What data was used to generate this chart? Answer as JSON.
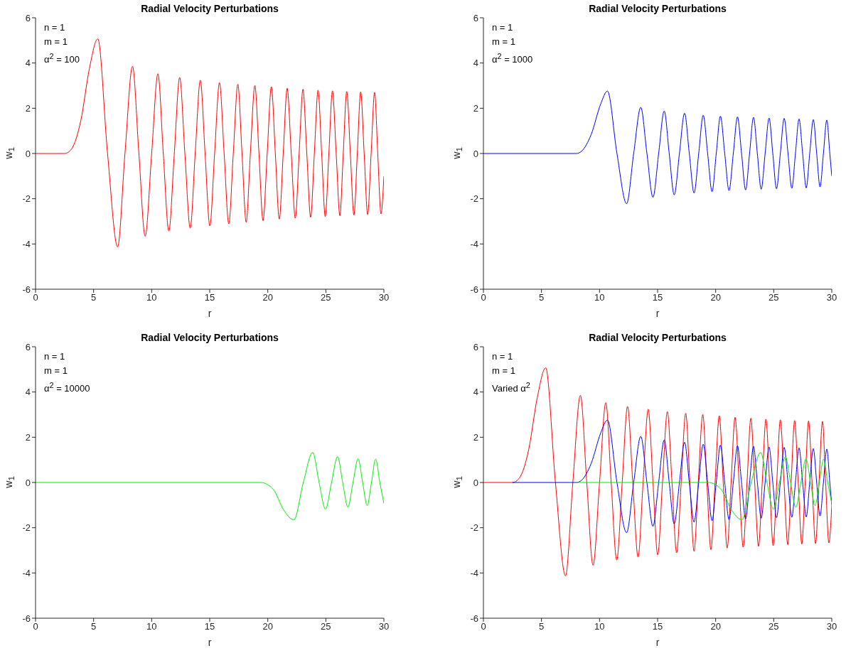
{
  "chart_data": [
    {
      "type": "line",
      "title": "Radial Velocity Perturbations",
      "xlabel": "r",
      "ylabel": "w$_{1}$",
      "annotations": [
        "n = 1",
        "m = 1",
        "α$^{2}$ = 100"
      ],
      "xlim": [
        0,
        30
      ],
      "xticks": [
        0,
        5,
        10,
        15,
        20,
        25,
        30
      ],
      "ylim": [
        -6,
        6
      ],
      "yticks": [
        -6,
        -4,
        -2,
        0,
        2,
        4,
        6
      ],
      "marker": "none",
      "line_style": "solid",
      "series": [
        {
          "color": "#ff0000",
          "x": [
            0,
            2.5,
            3.1,
            3.9,
            4.64,
            5.36,
            6.2,
            7.07,
            7.7,
            8.35,
            8.9,
            9.44,
            10.0,
            10.54,
            11.0,
            11.48,
            11.95,
            12.41,
            12.86,
            13.32,
            13.75,
            14.19,
            14.6,
            15.01,
            15.42,
            15.84,
            16.24,
            16.64,
            17.03,
            17.42,
            17.78,
            18.14,
            18.5,
            18.89,
            19.24,
            19.59,
            19.95,
            20.31,
            20.65,
            20.99,
            21.33,
            21.67,
            22.02,
            22.37,
            22.7,
            23.03,
            23.36,
            23.69,
            24.01,
            24.33,
            24.64,
            24.95,
            25.26,
            25.57,
            25.89,
            26.21,
            26.5,
            26.8,
            27.11,
            27.42,
            27.71,
            28.0,
            28.3,
            28.6,
            28.9,
            29.2,
            29.47,
            29.75,
            30
          ],
          "values": [
            0,
            0,
            0.2,
            1.46,
            3.76,
            5.07,
            0,
            -4.13,
            0,
            3.85,
            0,
            -3.66,
            0,
            3.53,
            0,
            -3.43,
            0,
            3.36,
            0,
            -3.3,
            0,
            3.24,
            0,
            -3.2,
            0,
            3.13,
            0,
            -3.11,
            0,
            3.06,
            0,
            -3.04,
            0,
            3.0,
            0,
            -2.97,
            0,
            2.95,
            0,
            -2.9,
            0,
            2.88,
            0,
            -2.86,
            0,
            2.84,
            0,
            -2.82,
            0,
            2.8,
            0,
            -2.79,
            0,
            2.77,
            0,
            -2.75,
            0,
            2.74,
            0,
            -2.72,
            0,
            2.72,
            0,
            -2.7,
            0,
            2.7,
            0,
            -2.67,
            -1.0
          ]
        }
      ]
    },
    {
      "type": "line",
      "title": "Radial Velocity Perturbations",
      "xlabel": "r",
      "ylabel": "w$_{1}$",
      "annotations": [
        "n = 1",
        "m = 1",
        "α$^{2}$ = 1000"
      ],
      "xlim": [
        0,
        30
      ],
      "xticks": [
        0,
        5,
        10,
        15,
        20,
        25,
        30
      ],
      "ylim": [
        -6,
        6
      ],
      "yticks": [
        -6,
        -4,
        -2,
        0,
        2,
        4,
        6
      ],
      "marker": "none",
      "line_style": "solid",
      "series": [
        {
          "color": "#0000ff",
          "x": [
            0,
            8,
            8.45,
            9.28,
            10.1,
            10.68,
            11.5,
            12.33,
            12.94,
            13.55,
            14.08,
            14.6,
            15.09,
            15.57,
            16.0,
            16.43,
            16.88,
            17.32,
            17.73,
            18.14,
            18.54,
            18.93,
            19.31,
            19.69,
            20.05,
            20.41,
            20.78,
            21.15,
            21.52,
            21.88,
            22.23,
            22.58,
            22.92,
            23.26,
            23.59,
            23.92,
            24.26,
            24.6,
            24.92,
            25.24,
            25.57,
            25.9,
            26.23,
            26.56,
            26.87,
            27.18,
            27.49,
            27.8,
            28.1,
            28.41,
            28.7,
            28.99,
            29.28,
            29.57,
            29.83,
            30
          ],
          "values": [
            0,
            0,
            0.1,
            0.84,
            2.19,
            2.76,
            0,
            -2.22,
            0,
            2.04,
            0,
            -1.94,
            0,
            1.88,
            0,
            -1.83,
            0,
            1.78,
            0,
            -1.75,
            0,
            1.69,
            0,
            -1.69,
            0,
            1.65,
            0,
            -1.64,
            0,
            1.62,
            0,
            -1.61,
            0,
            1.6,
            0,
            -1.58,
            0,
            1.57,
            0,
            -1.56,
            0,
            1.55,
            0,
            -1.54,
            0,
            1.53,
            0,
            -1.52,
            0,
            1.5,
            0,
            -1.48,
            0,
            1.48,
            0,
            -1.0
          ]
        }
      ]
    },
    {
      "type": "line",
      "title": "Radial Velocity Perturbations",
      "xlabel": "r",
      "ylabel": "w$_{1}$",
      "annotations": [
        "n = 1",
        "m = 1",
        "α$^{2}$ = 10000"
      ],
      "xlim": [
        0,
        30
      ],
      "xticks": [
        0,
        5,
        10,
        15,
        20,
        25,
        30
      ],
      "ylim": [
        -6,
        6
      ],
      "yticks": [
        -6,
        -4,
        -2,
        0,
        2,
        4,
        6
      ],
      "marker": "none",
      "line_style": "solid",
      "series": [
        {
          "color": "#00ee00",
          "x": [
            0,
            19.37,
            20.48,
            21.36,
            22.25,
            23.06,
            23.87,
            24.42,
            24.97,
            25.49,
            26.01,
            26.45,
            26.9,
            27.34,
            27.78,
            28.17,
            28.56,
            28.93,
            29.29,
            29.65,
            30
          ],
          "values": [
            0,
            0,
            -0.31,
            -1.21,
            -1.65,
            0,
            1.33,
            0,
            -1.18,
            0,
            1.14,
            0,
            -1.09,
            0,
            1.05,
            0,
            -1.02,
            0,
            1.03,
            0,
            -0.93
          ]
        }
      ]
    },
    {
      "type": "line",
      "title": "Radial Velocity Perturbations",
      "xlabel": "r",
      "ylabel": "w$_{1}$",
      "annotations": [
        "n = 1",
        "m = 1",
        "Varied α$^{2}$"
      ],
      "xlim": [
        0,
        30
      ],
      "xticks": [
        0,
        5,
        10,
        15,
        20,
        25,
        30
      ],
      "ylim": [
        -6,
        6
      ],
      "yticks": [
        -6,
        -4,
        -2,
        0,
        2,
        4,
        6
      ],
      "marker": "none",
      "line_style": "solid",
      "series": [
        {
          "color": "#00ee00",
          "x": [
            8,
            19.37,
            20.48,
            21.36,
            22.25,
            23.06,
            23.87,
            24.42,
            24.97,
            25.49,
            26.01,
            26.45,
            26.9,
            27.34,
            27.78,
            28.17,
            28.56,
            28.93,
            29.29,
            29.65,
            30
          ],
          "values": [
            0,
            0,
            -0.31,
            -1.21,
            -1.65,
            0,
            1.33,
            0,
            -1.18,
            0,
            1.14,
            0,
            -1.09,
            0,
            1.05,
            0,
            -1.02,
            0,
            1.03,
            0,
            -0.93
          ]
        },
        {
          "color": "#0000ff",
          "x": [
            2.5,
            8,
            8.45,
            9.28,
            10.1,
            10.68,
            11.5,
            12.33,
            12.94,
            13.55,
            14.08,
            14.6,
            15.09,
            15.57,
            16.0,
            16.43,
            16.88,
            17.32,
            17.73,
            18.14,
            18.54,
            18.93,
            19.31,
            19.69,
            20.05,
            20.41,
            20.78,
            21.15,
            21.52,
            21.88,
            22.23,
            22.58,
            22.92,
            23.26,
            23.59,
            23.92,
            24.26,
            24.6,
            24.92,
            25.24,
            25.57,
            25.9,
            26.23,
            26.56,
            26.87,
            27.18,
            27.49,
            27.8,
            28.1,
            28.41,
            28.7,
            28.99,
            29.28,
            29.57,
            29.83,
            30
          ],
          "values": [
            0,
            0,
            0.1,
            0.84,
            2.19,
            2.76,
            0,
            -2.22,
            0,
            2.04,
            0,
            -1.94,
            0,
            1.88,
            0,
            -1.83,
            0,
            1.78,
            0,
            -1.75,
            0,
            1.69,
            0,
            -1.69,
            0,
            1.65,
            0,
            -1.64,
            0,
            1.62,
            0,
            -1.61,
            0,
            1.6,
            0,
            -1.58,
            0,
            1.57,
            0,
            -1.56,
            0,
            1.55,
            0,
            -1.54,
            0,
            1.53,
            0,
            -1.52,
            0,
            1.5,
            0,
            -1.48,
            0,
            1.48,
            0,
            -1.0
          ]
        },
        {
          "color": "#ff0000",
          "x": [
            0,
            2.5,
            3.1,
            3.9,
            4.64,
            5.36,
            6.2,
            7.07,
            7.7,
            8.35,
            8.9,
            9.44,
            10.0,
            10.54,
            11.0,
            11.48,
            11.95,
            12.41,
            12.86,
            13.32,
            13.75,
            14.19,
            14.6,
            15.01,
            15.42,
            15.84,
            16.24,
            16.64,
            17.03,
            17.42,
            17.78,
            18.14,
            18.5,
            18.89,
            19.24,
            19.59,
            19.95,
            20.31,
            20.65,
            20.99,
            21.33,
            21.67,
            22.02,
            22.37,
            22.7,
            23.03,
            23.36,
            23.69,
            24.01,
            24.33,
            24.64,
            24.95,
            25.26,
            25.57,
            25.89,
            26.21,
            26.5,
            26.8,
            27.11,
            27.42,
            27.71,
            28.0,
            28.3,
            28.6,
            28.9,
            29.2,
            29.47,
            29.75,
            30
          ],
          "values": [
            0,
            0,
            0.2,
            1.46,
            3.76,
            5.07,
            0,
            -4.13,
            0,
            3.85,
            0,
            -3.66,
            0,
            3.53,
            0,
            -3.43,
            0,
            3.36,
            0,
            -3.3,
            0,
            3.24,
            0,
            -3.2,
            0,
            3.13,
            0,
            -3.11,
            0,
            3.06,
            0,
            -3.04,
            0,
            3.0,
            0,
            -2.97,
            0,
            2.95,
            0,
            -2.9,
            0,
            2.88,
            0,
            -2.86,
            0,
            2.84,
            0,
            -2.82,
            0,
            2.8,
            0,
            -2.79,
            0,
            2.77,
            0,
            -2.75,
            0,
            2.74,
            0,
            -2.72,
            0,
            2.72,
            0,
            -2.7,
            0,
            2.7,
            0,
            -2.67,
            -1.0
          ]
        }
      ]
    }
  ]
}
